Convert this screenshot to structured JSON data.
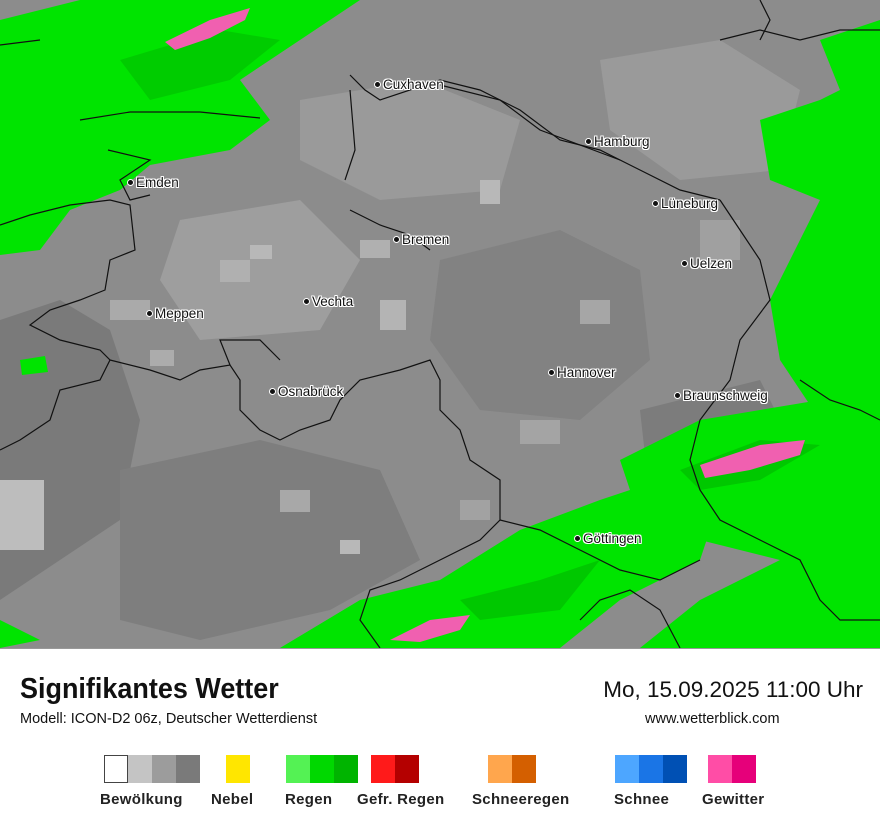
{
  "map": {
    "cities": [
      {
        "name": "Cuxhaven"
      },
      {
        "name": "Hamburg"
      },
      {
        "name": "Emden"
      },
      {
        "name": "Lüneburg"
      },
      {
        "name": "Bremen"
      },
      {
        "name": "Uelzen"
      },
      {
        "name": "Vechta"
      },
      {
        "name": "Meppen"
      },
      {
        "name": "Hannover"
      },
      {
        "name": "Osnabrück"
      },
      {
        "name": "Braunschweig"
      },
      {
        "name": "Göttingen"
      }
    ],
    "colors": {
      "background": "#8c8c8c",
      "cloud_dark": "#7a7a7a",
      "cloud_light": "#a8a8a8",
      "cloud_lighter": "#c4c4c4",
      "rain": "#00e400",
      "rain_dark": "#00c800",
      "thunder": "#f060b0"
    }
  },
  "footer": {
    "title": "Signifikantes Wetter",
    "model": "Modell: ICON-D2 06z, Deutscher Wetterdienst",
    "datetime": "Mo, 15.09.2025 11:00 Uhr",
    "website": "www.wetterblick.com"
  },
  "legend": [
    {
      "label": "Bewölkung",
      "colors": [
        "#ffffff",
        "#c4c4c4",
        "#9c9c9c",
        "#7a7a7a"
      ]
    },
    {
      "label": "Nebel",
      "colors": [
        "#ffe600"
      ]
    },
    {
      "label": "Regen",
      "colors": [
        "#54f254",
        "#00d800",
        "#00b400"
      ]
    },
    {
      "label": "Gefr. Regen",
      "colors": [
        "#ff1a1a",
        "#b40000"
      ]
    },
    {
      "label": "Schneeregen",
      "colors": [
        "#ffa64d",
        "#d45f00"
      ]
    },
    {
      "label": "Schnee",
      "colors": [
        "#4da6ff",
        "#1a75e6",
        "#0050b4"
      ]
    },
    {
      "label": "Gewitter",
      "colors": [
        "#ff4da6",
        "#e6007a"
      ]
    }
  ]
}
